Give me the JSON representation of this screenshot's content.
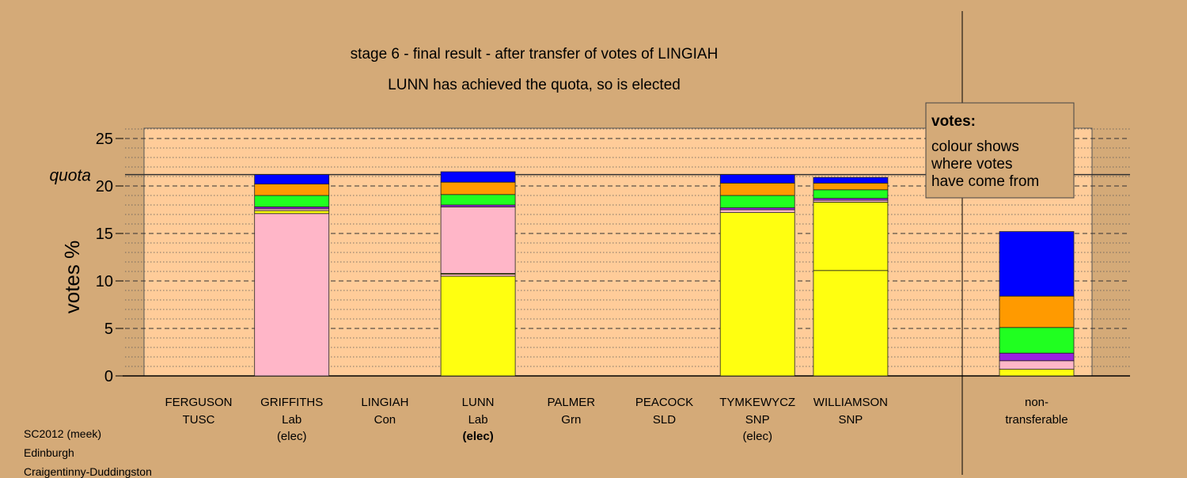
{
  "chart_data": {
    "type": "bar",
    "stacked": true,
    "title": "stage 6 - final result - after transfer of votes of LINGIAH",
    "subtitle": "LUNN has achieved the quota, so is elected",
    "ylabel": "votes %",
    "ylim": [
      0,
      26
    ],
    "yticks": [
      0,
      5,
      10,
      15,
      20,
      25
    ],
    "grid": true,
    "quota": {
      "label": "quota",
      "value": 21.2
    },
    "candidates": [
      {
        "name": "FERGUSON",
        "party": "TUSC",
        "status": "",
        "status_bold": false,
        "segments": []
      },
      {
        "name": "GRIFFITHS",
        "party": "Lab",
        "status": "(elec)",
        "status_bold": false,
        "segments": [
          {
            "color": "#ffb6c8",
            "value": 17.1
          },
          {
            "color": "#ffff10",
            "value": 0.3
          },
          {
            "color": "#ffb6c8",
            "value": 0.2
          },
          {
            "color": "#9a20e0",
            "value": 0.2
          },
          {
            "color": "#20ff20",
            "value": 1.2
          },
          {
            "color": "#ff9a00",
            "value": 1.2
          },
          {
            "color": "#0000ff",
            "value": 1.0
          }
        ]
      },
      {
        "name": "LINGIAH",
        "party": "Con",
        "status": "",
        "status_bold": false,
        "segments": []
      },
      {
        "name": "LUNN",
        "party": "Lab",
        "status": "(elec)",
        "status_bold": true,
        "segments": [
          {
            "color": "#ffff10",
            "value": 10.5
          },
          {
            "color": "#ffb6c8",
            "value": 0.2
          },
          {
            "color": "#ffff10",
            "value": 0.1
          },
          {
            "color": "#ffb6c8",
            "value": 7.0
          },
          {
            "color": "#9a20e0",
            "value": 0.2
          },
          {
            "color": "#20ff20",
            "value": 1.1
          },
          {
            "color": "#ff9a00",
            "value": 1.3
          },
          {
            "color": "#0000ff",
            "value": 1.1
          }
        ]
      },
      {
        "name": "PALMER",
        "party": "Grn",
        "status": "",
        "status_bold": false,
        "segments": []
      },
      {
        "name": "PEACOCK",
        "party": "SLD",
        "status": "",
        "status_bold": false,
        "segments": []
      },
      {
        "name": "TYMKEWYCZ",
        "party": "SNP",
        "status": "(elec)",
        "status_bold": false,
        "segments": [
          {
            "color": "#ffff10",
            "value": 17.2
          },
          {
            "color": "#ffb6c8",
            "value": 0.3
          },
          {
            "color": "#9a20e0",
            "value": 0.2
          },
          {
            "color": "#20ff20",
            "value": 1.3
          },
          {
            "color": "#ff9a00",
            "value": 1.3
          },
          {
            "color": "#0000ff",
            "value": 0.9
          }
        ]
      },
      {
        "name": "WILLIAMSON",
        "party": "SNP",
        "status": "",
        "status_bold": false,
        "segments": [
          {
            "color": "#ffff10",
            "value": 11.1
          },
          {
            "color": "#ffff10",
            "value": 7.2
          },
          {
            "color": "#ffb6c8",
            "value": 0.2
          },
          {
            "color": "#9a20e0",
            "value": 0.2
          },
          {
            "color": "#20ff20",
            "value": 0.9
          },
          {
            "color": "#ff9a00",
            "value": 0.7
          },
          {
            "color": "#0000ff",
            "value": 0.6
          }
        ]
      }
    ],
    "nontransferable": {
      "label_line1": "non-",
      "label_line2": "transferable",
      "segments": [
        {
          "color": "#ffff10",
          "value": 0.7
        },
        {
          "color": "#ffb6c8",
          "value": 0.9
        },
        {
          "color": "#9a20e0",
          "value": 0.8
        },
        {
          "color": "#20ff20",
          "value": 2.7
        },
        {
          "color": "#ff9a00",
          "value": 3.3
        },
        {
          "color": "#0000ff",
          "value": 6.8
        }
      ]
    },
    "legend": {
      "title": "votes:",
      "lines": [
        "colour shows",
        "where votes",
        "have come from"
      ],
      "placement": "top-right"
    }
  },
  "footer": {
    "line1": "SC2012 (meek)",
    "line2": "Edinburgh",
    "line3": "Craigentinny-Duddingston"
  },
  "colors": {
    "background": "#d4aa78",
    "plot_area": "#ffcc99",
    "quota_line": "#303030"
  }
}
